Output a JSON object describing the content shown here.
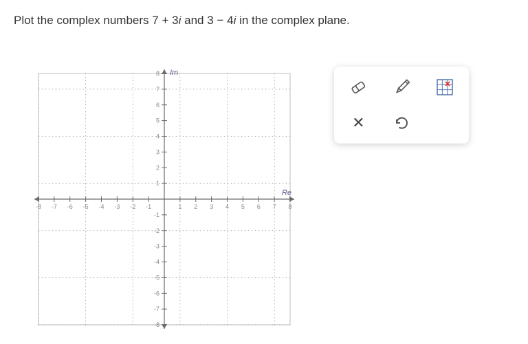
{
  "prompt": {
    "prefix": "Plot the complex numbers ",
    "expr1_re": "7",
    "expr1_op": "+",
    "expr1_im": "3",
    "mid": " and ",
    "expr2_re": "3",
    "expr2_op": "−",
    "expr2_im": "4",
    "suffix": " in the complex plane."
  },
  "chart": {
    "type": "scatter",
    "xlim": [
      -8,
      8
    ],
    "ylim": [
      -8,
      8
    ],
    "xtick_step": 1,
    "ytick_step": 1,
    "xlabel": "Re",
    "ylabel": "Im",
    "origin_label": "",
    "points": [],
    "axis_color": "#6a6a6a",
    "tick_font_size": 9,
    "tick_color": "#888888",
    "label_color": "#5a5a8a",
    "label_font_size": 11,
    "background_color": "#ffffff",
    "minor_dot_color": "#8c8c8c",
    "dotted_grid_positions": [
      -8,
      -5,
      -2,
      1,
      4,
      7
    ],
    "border_color": "#bdbdbd"
  },
  "toolbox": {
    "tools": [
      {
        "name": "eraser",
        "label": "Eraser"
      },
      {
        "name": "pencil",
        "label": "Pencil"
      },
      {
        "name": "grid-point",
        "label": "Grid point marker"
      },
      {
        "name": "close",
        "label": "Clear"
      },
      {
        "name": "undo",
        "label": "Undo"
      }
    ],
    "icon_color": "#555555"
  }
}
